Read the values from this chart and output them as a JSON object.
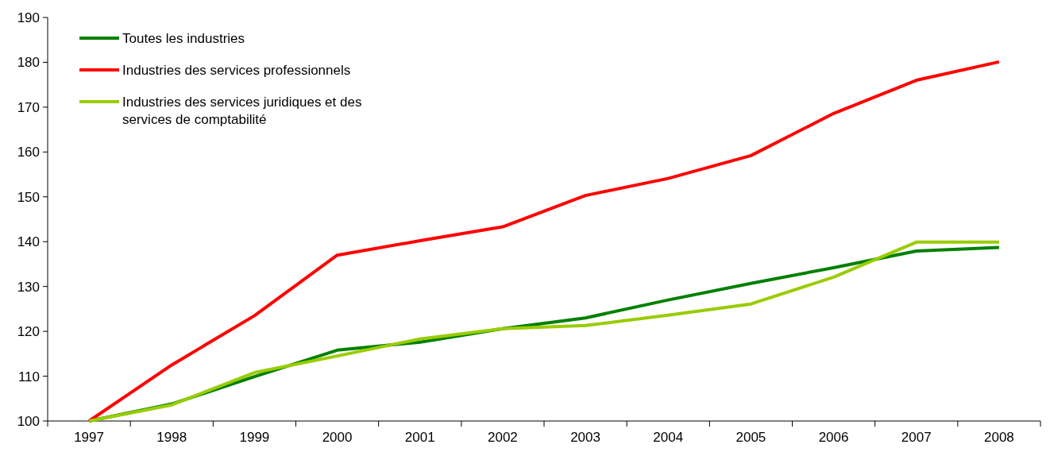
{
  "chart_data": {
    "type": "line",
    "categories": [
      "1997",
      "1998",
      "1999",
      "2000",
      "2001",
      "2002",
      "2003",
      "2004",
      "2005",
      "2006",
      "2007",
      "2008"
    ],
    "series": [
      {
        "name": "Toutes les industries",
        "color": "#008000",
        "values": [
          100,
          103.8,
          109.9,
          115.8,
          117.6,
          120.6,
          123,
          127,
          130.7,
          134.2,
          137.9,
          138.7
        ]
      },
      {
        "name": "Industries des services professionnels",
        "color": "#ff0000",
        "values": [
          100,
          112.5,
          123.5,
          137,
          140.2,
          143.3,
          150.3,
          154.1,
          159.2,
          168.6,
          176,
          180.1
        ]
      },
      {
        "name": "Industries des services juridiques et des services de comptabilité",
        "color": "#99cc00",
        "values": [
          100,
          103.6,
          110.8,
          114.5,
          118.3,
          120.6,
          121.3,
          123.6,
          126.1,
          132.1,
          139.9,
          139.9
        ]
      }
    ],
    "ylim": [
      100,
      190
    ],
    "yticks": [
      100,
      110,
      120,
      130,
      140,
      150,
      160,
      170,
      180,
      190
    ],
    "grid": false,
    "legend": "top left",
    "marker": "none",
    "line_style": "solid"
  }
}
